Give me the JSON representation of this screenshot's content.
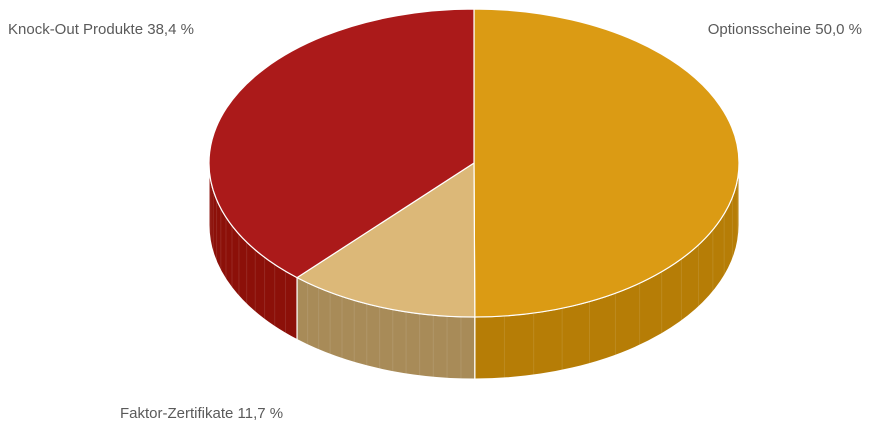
{
  "chart_data": {
    "type": "pie",
    "title": "",
    "slices": [
      {
        "label": "Optionsscheine 50,0 %",
        "name": "Optionsscheine",
        "value": 50.0,
        "color": "#db9b14",
        "side_color": "#b67d06"
      },
      {
        "label": "Faktor-Zertifikate 11,7 %",
        "name": "Faktor-Zertifikate",
        "value": 11.7,
        "color": "#dcb878",
        "side_color": "#a88b58"
      },
      {
        "label": "Knock-Out Produkte 38,4 %",
        "name": "Knock-Out Produkte",
        "value": 38.4,
        "color": "#ab1a1a",
        "side_color": "#8c1009"
      }
    ],
    "style": "3d-pie",
    "legend": "none"
  }
}
